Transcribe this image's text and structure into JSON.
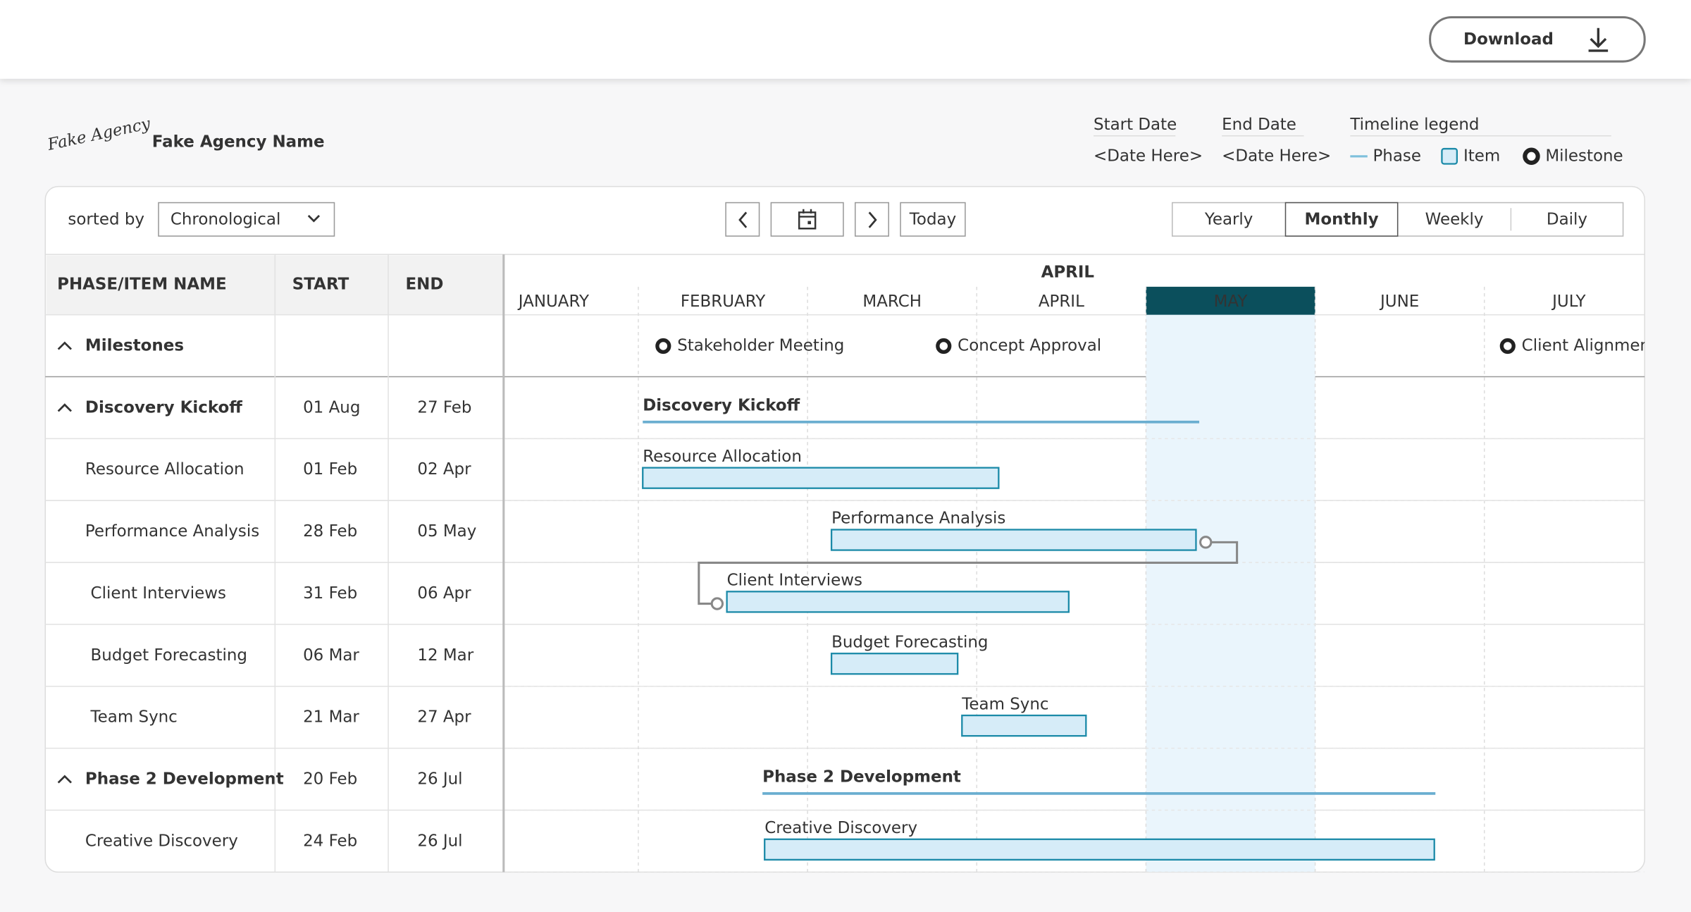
{
  "header": {
    "download": "Download"
  },
  "agency": {
    "logo": "Fake Agency",
    "name": "Fake Agency Name"
  },
  "dates": [
    {
      "label": "Start Date",
      "value": "<Date Here>"
    },
    {
      "label": "End Date",
      "value": "<Date Here>"
    }
  ],
  "legend": {
    "title": "Timeline legend",
    "items": [
      "Phase",
      "Item",
      "Milestone"
    ]
  },
  "toolbar": {
    "sort_label": "sorted by",
    "sort_value": "Chronological",
    "today": "Today",
    "views": [
      "Yearly",
      "Monthly",
      "Weekly",
      "Daily"
    ],
    "active_view": 1
  },
  "table": {
    "headers": [
      "PHASE/ITEM NAME",
      "START",
      "END"
    ],
    "rows": [
      {
        "kind": "group",
        "name": "Milestones"
      },
      {
        "kind": "group",
        "name": "Discovery Kickoff",
        "start": "01 Aug",
        "end": "27 Feb"
      },
      {
        "kind": "item",
        "name": "Resource Allocation",
        "start": "01 Feb",
        "end": "02 Apr"
      },
      {
        "kind": "item",
        "name": "Performance Analysis",
        "start": "28 Feb",
        "end": "05 May"
      },
      {
        "kind": "item",
        "name": "Client Interviews",
        "start": "31 Feb",
        "end": "06 Apr"
      },
      {
        "kind": "item",
        "name": "Budget Forecasting",
        "start": "06 Mar",
        "end": "12 Mar"
      },
      {
        "kind": "item",
        "name": "Team Sync",
        "start": "21 Mar",
        "end": "27 Apr"
      },
      {
        "kind": "group",
        "name": "Phase 2 Development",
        "start": "20 Feb",
        "end": "26 Jul"
      },
      {
        "kind": "item",
        "name": "Creative Discovery",
        "start": "24 Feb",
        "end": "26 Jul"
      }
    ]
  },
  "timeline": {
    "top_label": "APRIL",
    "months": [
      "JANUARY",
      "FEBRUARY",
      "MARCH",
      "APRIL",
      "MAY",
      "JUNE",
      "JULY"
    ],
    "highlight_month": 4,
    "milestones": [
      "Stakeholder Meeting",
      "Concept Approval",
      "Client Alignment"
    ]
  }
}
